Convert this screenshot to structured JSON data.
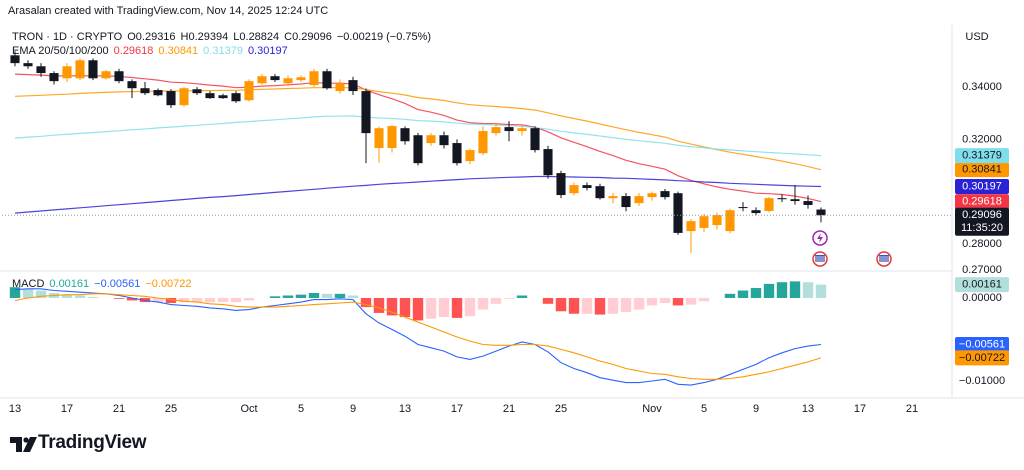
{
  "header": "Arasalan created with TradingView.com, Nov 14, 2025 12:24 UTC",
  "footer_brand": "TradingView",
  "chart_data": [
    {
      "type": "candlestick",
      "title": "TRON · 1D · CRYPTO",
      "ohlc_prefixes": [
        "O",
        "H",
        "L",
        "C"
      ],
      "change": "−0.00219 (−0.75%)",
      "currency": "USD",
      "countdown": "11:35:20",
      "up_color": "#ff9800",
      "down_color": "#131722",
      "x": [
        "2025-09-13",
        "2025-09-14",
        "2025-09-15",
        "2025-09-16",
        "2025-09-17",
        "2025-09-18",
        "2025-09-19",
        "2025-09-20",
        "2025-09-21",
        "2025-09-22",
        "2025-09-23",
        "2025-09-24",
        "2025-09-25",
        "2025-09-26",
        "2025-09-27",
        "2025-09-28",
        "2025-09-29",
        "2025-09-30",
        "2025-10-01",
        "2025-10-02",
        "2025-10-03",
        "2025-10-04",
        "2025-10-05",
        "2025-10-06",
        "2025-10-07",
        "2025-10-08",
        "2025-10-09",
        "2025-10-10",
        "2025-10-11",
        "2025-10-12",
        "2025-10-13",
        "2025-10-14",
        "2025-10-15",
        "2025-10-16",
        "2025-10-17",
        "2025-10-18",
        "2025-10-19",
        "2025-10-20",
        "2025-10-21",
        "2025-10-22",
        "2025-10-23",
        "2025-10-24",
        "2025-10-25",
        "2025-10-26",
        "2025-10-27",
        "2025-10-28",
        "2025-10-29",
        "2025-10-30",
        "2025-10-31",
        "2025-11-01",
        "2025-11-02",
        "2025-11-03",
        "2025-11-04",
        "2025-11-05",
        "2025-11-06",
        "2025-11-07",
        "2025-11-08",
        "2025-11-09",
        "2025-11-10",
        "2025-11-11",
        "2025-11-12",
        "2025-11-13",
        "2025-11-14"
      ],
      "open": [
        0.3522,
        0.3492,
        0.348,
        0.3454,
        0.3434,
        0.3434,
        0.3503,
        0.3434,
        0.3461,
        0.3423,
        0.3396,
        0.3389,
        0.3385,
        0.3331,
        0.3392,
        0.3377,
        0.3369,
        0.3377,
        0.335,
        0.3415,
        0.3442,
        0.3415,
        0.3427,
        0.3408,
        0.3461,
        0.3385,
        0.3427,
        0.3385,
        0.3167,
        0.3167,
        0.3243,
        0.3216,
        0.3186,
        0.3216,
        0.3186,
        0.3117,
        0.3147,
        0.3224,
        0.3247,
        0.3232,
        0.3243,
        0.3163,
        0.3071,
        0.2994,
        0.3025,
        0.3021,
        0.2975,
        0.2983,
        0.2956,
        0.2979,
        0.3002,
        0.2994,
        0.2849,
        0.2861,
        0.2872,
        0.2849,
        0.2941,
        0.2929,
        0.2926,
        0.2975,
        0.2971,
        0.2964,
        0.29316
      ],
      "high": [
        0.3538,
        0.3503,
        0.3492,
        0.3461,
        0.3492,
        0.351,
        0.351,
        0.3465,
        0.347,
        0.343,
        0.342,
        0.3395,
        0.3392,
        0.34,
        0.34,
        0.3385,
        0.3375,
        0.3385,
        0.343,
        0.345,
        0.345,
        0.3445,
        0.3445,
        0.347,
        0.347,
        0.343,
        0.344,
        0.3395,
        0.325,
        0.3255,
        0.325,
        0.3225,
        0.3225,
        0.323,
        0.32,
        0.3165,
        0.325,
        0.326,
        0.327,
        0.3255,
        0.325,
        0.3175,
        0.308,
        0.3035,
        0.3035,
        0.303,
        0.2995,
        0.2995,
        0.2995,
        0.3,
        0.301,
        0.3,
        0.2895,
        0.2915,
        0.292,
        0.2935,
        0.296,
        0.294,
        0.298,
        0.299,
        0.3025,
        0.2985,
        0.29394
      ],
      "low": [
        0.348,
        0.347,
        0.344,
        0.341,
        0.342,
        0.3427,
        0.3427,
        0.343,
        0.3415,
        0.3358,
        0.337,
        0.3365,
        0.332,
        0.3325,
        0.337,
        0.3355,
        0.3355,
        0.334,
        0.3345,
        0.341,
        0.342,
        0.3405,
        0.342,
        0.34,
        0.339,
        0.3375,
        0.337,
        0.3109,
        0.311,
        0.315,
        0.318,
        0.31,
        0.3175,
        0.3165,
        0.31,
        0.3105,
        0.314,
        0.3215,
        0.3193,
        0.3215,
        0.315,
        0.305,
        0.2975,
        0.2985,
        0.3005,
        0.297,
        0.2955,
        0.2925,
        0.2945,
        0.2965,
        0.297,
        0.2835,
        0.2765,
        0.2845,
        0.2855,
        0.284,
        0.2925,
        0.291,
        0.292,
        0.296,
        0.295,
        0.2935,
        0.28824
      ],
      "close": [
        0.3492,
        0.348,
        0.3454,
        0.3423,
        0.348,
        0.3503,
        0.3434,
        0.3461,
        0.3423,
        0.3396,
        0.3377,
        0.3369,
        0.3331,
        0.3396,
        0.3377,
        0.3358,
        0.3358,
        0.3346,
        0.3423,
        0.3442,
        0.3427,
        0.3434,
        0.3438,
        0.3461,
        0.3396,
        0.3415,
        0.3385,
        0.3224,
        0.3243,
        0.3251,
        0.3193,
        0.3109,
        0.3216,
        0.3178,
        0.3109,
        0.3159,
        0.3232,
        0.3247,
        0.3232,
        0.3243,
        0.3159,
        0.3063,
        0.2987,
        0.3025,
        0.3014,
        0.2975,
        0.2983,
        0.2941,
        0.2983,
        0.2994,
        0.2979,
        0.2842,
        0.2887,
        0.2906,
        0.291,
        0.2929,
        0.2937,
        0.2918,
        0.2975,
        0.2971,
        0.2964,
        0.2949,
        0.29096
      ],
      "overlay_title": "EMA 20/50/100/200",
      "series": [
        {
          "color": "#f23645",
          "label_color": "#ffffff",
          "values": [
            0.345,
            0.3448,
            0.3446,
            0.3443,
            0.3443,
            0.3444,
            0.3443,
            0.3443,
            0.3441,
            0.3437,
            0.3432,
            0.3427,
            0.3419,
            0.3417,
            0.3413,
            0.3408,
            0.3404,
            0.3398,
            0.34,
            0.3404,
            0.3406,
            0.3409,
            0.3412,
            0.3417,
            0.3415,
            0.3415,
            0.3412,
            0.3389,
            0.3371,
            0.3356,
            0.3338,
            0.3314,
            0.3304,
            0.3292,
            0.3274,
            0.3264,
            0.3261,
            0.326,
            0.3257,
            0.3256,
            0.3247,
            0.3229,
            0.3206,
            0.3189,
            0.3172,
            0.3154,
            0.3138,
            0.312,
            0.3107,
            0.3097,
            0.3086,
            0.3061,
            0.3043,
            0.303,
            0.3018,
            0.3009,
            0.3002,
            0.2994,
            0.2992,
            0.2989,
            0.2983,
            0.2974,
            0.29618
          ]
        },
        {
          "color": "#ff9800",
          "label_color": "#131722",
          "values": [
            0.3365,
            0.3367,
            0.3369,
            0.3371,
            0.3373,
            0.3376,
            0.3378,
            0.338,
            0.3382,
            0.3383,
            0.3384,
            0.3385,
            0.3385,
            0.3386,
            0.3387,
            0.3387,
            0.3388,
            0.3388,
            0.339,
            0.3392,
            0.3393,
            0.3395,
            0.3396,
            0.3398,
            0.3398,
            0.3398,
            0.3398,
            0.3391,
            0.3383,
            0.3377,
            0.337,
            0.336,
            0.3355,
            0.3349,
            0.334,
            0.3333,
            0.3329,
            0.3326,
            0.3322,
            0.3318,
            0.3312,
            0.3302,
            0.329,
            0.328,
            0.327,
            0.3259,
            0.3248,
            0.3237,
            0.3227,
            0.3218,
            0.3209,
            0.3193,
            0.3182,
            0.3171,
            0.3161,
            0.3151,
            0.3143,
            0.3134,
            0.3126,
            0.3117,
            0.3107,
            0.3096,
            0.30841
          ]
        },
        {
          "color": "#80deea",
          "label_color": "#131722",
          "values": [
            0.3205,
            0.3209,
            0.3212,
            0.3216,
            0.3219,
            0.3223,
            0.3226,
            0.323,
            0.3233,
            0.3237,
            0.324,
            0.3244,
            0.3247,
            0.3251,
            0.3254,
            0.3258,
            0.3261,
            0.3265,
            0.3268,
            0.3272,
            0.3275,
            0.3279,
            0.3282,
            0.3286,
            0.3289,
            0.3289,
            0.329,
            0.3285,
            0.3282,
            0.328,
            0.3277,
            0.3272,
            0.327,
            0.3267,
            0.3262,
            0.3259,
            0.3257,
            0.3255,
            0.3252,
            0.325,
            0.3245,
            0.3239,
            0.3231,
            0.3225,
            0.3219,
            0.3213,
            0.3207,
            0.32,
            0.3195,
            0.319,
            0.3185,
            0.3177,
            0.3172,
            0.3168,
            0.3163,
            0.316,
            0.3156,
            0.3153,
            0.315,
            0.3147,
            0.3144,
            0.3141,
            0.31379
          ]
        },
        {
          "color": "#2a22d6",
          "label_color": "#ffffff",
          "values": [
            0.2918,
            0.2922,
            0.2926,
            0.293,
            0.2934,
            0.2938,
            0.2942,
            0.2946,
            0.295,
            0.2954,
            0.2958,
            0.2962,
            0.2966,
            0.297,
            0.2974,
            0.2978,
            0.2981,
            0.2985,
            0.2989,
            0.2993,
            0.2997,
            0.3001,
            0.3005,
            0.3009,
            0.3013,
            0.3017,
            0.3021,
            0.3024,
            0.3028,
            0.3031,
            0.3034,
            0.3037,
            0.304,
            0.3043,
            0.3046,
            0.3049,
            0.3051,
            0.3053,
            0.3055,
            0.3056,
            0.3058,
            0.3058,
            0.3057,
            0.3056,
            0.3055,
            0.3054,
            0.3052,
            0.3051,
            0.3049,
            0.3047,
            0.3045,
            0.3042,
            0.304,
            0.3037,
            0.3035,
            0.3032,
            0.303,
            0.3028,
            0.3026,
            0.3024,
            0.3022,
            0.3021,
            0.30197
          ]
        }
      ],
      "xlim": [
        "2025-09-12",
        "2025-11-24"
      ],
      "xticks": [
        {
          "value": "2025-09-13",
          "label": "13"
        },
        {
          "value": "2025-09-17",
          "label": "17"
        },
        {
          "value": "2025-09-21",
          "label": "21"
        },
        {
          "value": "2025-09-25",
          "label": "25"
        },
        {
          "value": "2025-10-01",
          "label": "Oct"
        },
        {
          "value": "2025-10-05",
          "label": "5"
        },
        {
          "value": "2025-10-09",
          "label": "9"
        },
        {
          "value": "2025-10-13",
          "label": "13"
        },
        {
          "value": "2025-10-17",
          "label": "17"
        },
        {
          "value": "2025-10-21",
          "label": "21"
        },
        {
          "value": "2025-10-25",
          "label": "25"
        },
        {
          "value": "2025-11-01",
          "label": "Nov"
        },
        {
          "value": "2025-11-05",
          "label": "5"
        },
        {
          "value": "2025-11-09",
          "label": "9"
        },
        {
          "value": "2025-11-13",
          "label": "13"
        },
        {
          "value": "2025-11-17",
          "label": "17"
        },
        {
          "value": "2025-11-21",
          "label": "21"
        }
      ],
      "ylim": [
        0.27,
        0.3638
      ],
      "yticks": [
        {
          "value": 0.27,
          "label": "0.27000"
        },
        {
          "value": 0.28,
          "label": "0.28000"
        },
        {
          "value": 0.32,
          "label": "0.32000"
        },
        {
          "value": 0.34,
          "label": "0.34000"
        }
      ]
    },
    {
      "type": "macd",
      "title": "MACD",
      "histogram": {
        "colors": {
          "rising_above": "#26a69a",
          "falling_above": "#b2dfdb",
          "falling_below": "#ff5252",
          "rising_below": "#ffcdd2"
        },
        "values": [
          0.0013,
          0.0011,
          0.0009,
          0.0006,
          0.0004,
          0.0003,
          0.0001,
          0.0,
          -0.0001,
          -0.0003,
          -0.0005,
          -0.0005,
          -0.0006,
          -0.0005,
          -0.0005,
          -0.0005,
          -0.0005,
          -0.0005,
          -0.0003,
          0.0,
          0.0002,
          0.0003,
          0.0004,
          0.0006,
          0.0005,
          0.0005,
          0.0003,
          -0.0011,
          -0.0018,
          -0.0021,
          -0.0023,
          -0.0027,
          -0.0025,
          -0.0023,
          -0.0024,
          -0.0022,
          -0.0014,
          -0.0007,
          -0.0001,
          0.0003,
          0.0,
          -0.0007,
          -0.0016,
          -0.0019,
          -0.0019,
          -0.002,
          -0.0019,
          -0.0017,
          -0.0014,
          -0.0009,
          -0.0006,
          -0.0009,
          -0.0008,
          -0.0004,
          0.0,
          0.0005,
          0.0009,
          0.0012,
          0.0017,
          0.0019,
          0.002,
          0.0019,
          0.00161
        ]
      },
      "series": [
        {
          "color": "#2962ff",
          "label_color": "#ffffff",
          "last_label": "−0.00561",
          "values": [
            0.001,
            0.0011,
            0.0011,
            0.0009,
            0.0008,
            0.0007,
            0.0006,
            0.0005,
            0.0003,
            0.0,
            -0.0003,
            -0.0005,
            -0.0008,
            -0.0009,
            -0.001,
            -0.0012,
            -0.0013,
            -0.0015,
            -0.0014,
            -0.0011,
            -0.0009,
            -0.0007,
            -0.0005,
            -0.0002,
            -0.0002,
            -0.0001,
            -0.0002,
            -0.0019,
            -0.003,
            -0.0038,
            -0.0046,
            -0.0056,
            -0.006,
            -0.0064,
            -0.0071,
            -0.0074,
            -0.007,
            -0.0064,
            -0.0058,
            -0.0053,
            -0.0056,
            -0.0065,
            -0.0078,
            -0.0085,
            -0.009,
            -0.0096,
            -0.0099,
            -0.0102,
            -0.0102,
            -0.01,
            -0.0098,
            -0.0104,
            -0.0105,
            -0.0102,
            -0.0098,
            -0.0092,
            -0.0086,
            -0.008,
            -0.0072,
            -0.0066,
            -0.0061,
            -0.0058,
            -0.00561
          ]
        },
        {
          "color": "#ff9800",
          "label_color": "#131722",
          "last_label": "−0.00722",
          "values": [
            -0.0003,
            0.0,
            0.0002,
            0.0003,
            0.0004,
            0.0004,
            0.0005,
            0.0005,
            0.0004,
            0.0003,
            0.0002,
            0.0,
            -0.0002,
            -0.0004,
            -0.0005,
            -0.0007,
            -0.0008,
            -0.001,
            -0.0011,
            -0.0011,
            -0.0011,
            -0.001,
            -0.0009,
            -0.0008,
            -0.0007,
            -0.0006,
            -0.0005,
            -0.0008,
            -0.0012,
            -0.0017,
            -0.0023,
            -0.0029,
            -0.0035,
            -0.0041,
            -0.0047,
            -0.0052,
            -0.0056,
            -0.0057,
            -0.0057,
            -0.0056,
            -0.0056,
            -0.0058,
            -0.0062,
            -0.0066,
            -0.0071,
            -0.0076,
            -0.008,
            -0.0085,
            -0.0088,
            -0.0091,
            -0.0092,
            -0.0095,
            -0.0097,
            -0.0098,
            -0.0098,
            -0.0097,
            -0.0095,
            -0.0092,
            -0.0089,
            -0.0085,
            -0.0081,
            -0.0077,
            -0.00722
          ]
        }
      ],
      "ylim": [
        -0.01205,
        0.00313
      ],
      "yticks": [
        {
          "value": 0,
          "label": "0.00000"
        },
        {
          "value": -0.01,
          "label": "−0.01000"
        }
      ]
    }
  ]
}
